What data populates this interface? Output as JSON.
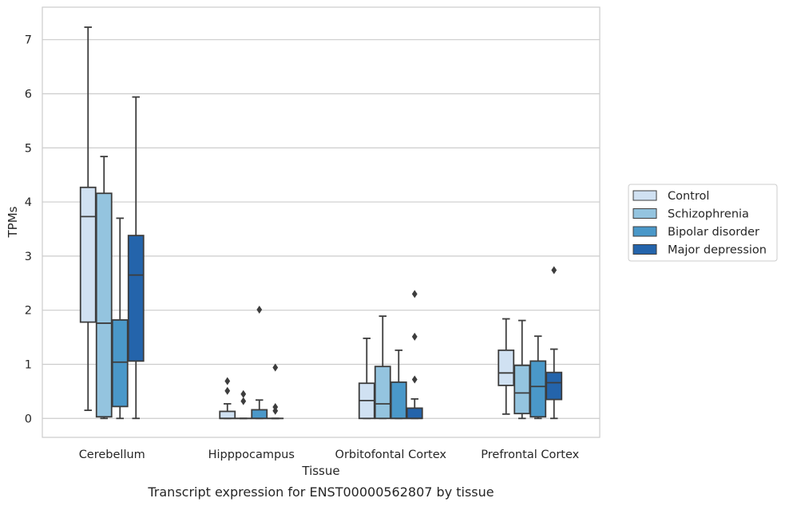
{
  "chart_data": {
    "type": "box",
    "caption": "Transcript expression for ENST00000562807 by tissue",
    "xlabel": "Tissue",
    "ylabel": "TPMs",
    "ylim": [
      -0.35,
      7.6
    ],
    "yticks": [
      0,
      1,
      2,
      3,
      4,
      5,
      6,
      7
    ],
    "grid": "horizontal",
    "legend_placement": "right",
    "categories": [
      "Cerebellum",
      "Hipppocampus",
      "Orbitofontal Cortex",
      "Prefrontal Cortex"
    ],
    "series": [
      {
        "name": "Control",
        "color": "#d0e1f2",
        "boxes": [
          {
            "whislo": 0.15,
            "q1": 1.78,
            "med": 3.73,
            "q3": 4.27,
            "whishi": 7.23,
            "fliers": []
          },
          {
            "whislo": 0.0,
            "q1": 0.0,
            "med": 0.0,
            "q3": 0.13,
            "whishi": 0.27,
            "fliers": [
              0.51,
              0.69
            ]
          },
          {
            "whislo": 0.0,
            "q1": 0.0,
            "med": 0.33,
            "q3": 0.65,
            "whishi": 1.48,
            "fliers": []
          },
          {
            "whislo": 0.08,
            "q1": 0.61,
            "med": 0.84,
            "q3": 1.26,
            "whishi": 1.84,
            "fliers": []
          }
        ]
      },
      {
        "name": "Schizophrenia",
        "color": "#94c4df",
        "boxes": [
          {
            "whislo": 0.0,
            "q1": 0.03,
            "med": 1.76,
            "q3": 4.16,
            "whishi": 4.84,
            "fliers": []
          },
          {
            "whislo": 0.0,
            "q1": 0.0,
            "med": 0.0,
            "q3": 0.0,
            "whishi": 0.0,
            "fliers": [
              0.32,
              0.45
            ]
          },
          {
            "whislo": 0.0,
            "q1": 0.0,
            "med": 0.27,
            "q3": 0.96,
            "whishi": 1.89,
            "fliers": []
          },
          {
            "whislo": 0.0,
            "q1": 0.09,
            "med": 0.47,
            "q3": 0.98,
            "whishi": 1.81,
            "fliers": []
          }
        ]
      },
      {
        "name": "Bipolar disorder",
        "color": "#4a98c9",
        "boxes": [
          {
            "whislo": 0.0,
            "q1": 0.22,
            "med": 1.04,
            "q3": 1.82,
            "whishi": 3.7,
            "fliers": []
          },
          {
            "whislo": 0.0,
            "q1": 0.0,
            "med": 0.0,
            "q3": 0.16,
            "whishi": 0.34,
            "fliers": [
              2.01
            ]
          },
          {
            "whislo": 0.0,
            "q1": 0.0,
            "med": 0.0,
            "q3": 0.67,
            "whishi": 1.26,
            "fliers": []
          },
          {
            "whislo": 0.0,
            "q1": 0.03,
            "med": 0.59,
            "q3": 1.06,
            "whishi": 1.52,
            "fliers": []
          }
        ]
      },
      {
        "name": "Major depression",
        "color": "#2464ab",
        "boxes": [
          {
            "whislo": 0.0,
            "q1": 1.06,
            "med": 2.65,
            "q3": 3.38,
            "whishi": 5.94,
            "fliers": []
          },
          {
            "whislo": 0.0,
            "q1": 0.0,
            "med": 0.0,
            "q3": 0.0,
            "whishi": 0.0,
            "fliers": [
              0.14,
              0.21,
              0.94
            ]
          },
          {
            "whislo": 0.0,
            "q1": 0.0,
            "med": 0.0,
            "q3": 0.19,
            "whishi": 0.36,
            "fliers": [
              0.72,
              1.51,
              2.3
            ]
          },
          {
            "whislo": 0.0,
            "q1": 0.35,
            "med": 0.66,
            "q3": 0.85,
            "whishi": 1.28,
            "fliers": [
              2.74
            ]
          }
        ]
      }
    ]
  }
}
